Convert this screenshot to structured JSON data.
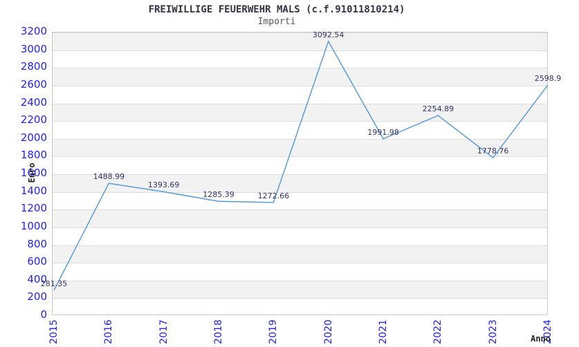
{
  "chart_data": {
    "type": "line",
    "title": "FREIWILLIGE FEUERWEHR MALS (c.f.91011810214)",
    "subtitle": "Importi",
    "xlabel": "Anno",
    "ylabel": "Euro",
    "categories": [
      "2015",
      "2016",
      "2017",
      "2018",
      "2019",
      "2020",
      "2021",
      "2022",
      "2023",
      "2024"
    ],
    "values": [
      281.35,
      1488.99,
      1393.69,
      1285.39,
      1272.66,
      3092.54,
      1991.98,
      2254.89,
      1778.76,
      2598.9
    ],
    "point_labels": [
      "281.35",
      "1488.99",
      "1393.69",
      "1285.39",
      "1272.66",
      "3092.54",
      "1991.98",
      "2254.89",
      "1778.76",
      "2598.9"
    ],
    "ylim": [
      0,
      3200
    ],
    "ytick_step": 200,
    "grid": "horizontal-bands",
    "legend": "none",
    "colors": {
      "line": "#5b9bd5",
      "band": "#f2f2f2",
      "gridline": "#dcdcdc",
      "tick_label": "#2222ee",
      "point_label": "#333366",
      "title": "#333344",
      "subtitle": "#5a5a5a",
      "axis_title": "#222222"
    }
  }
}
